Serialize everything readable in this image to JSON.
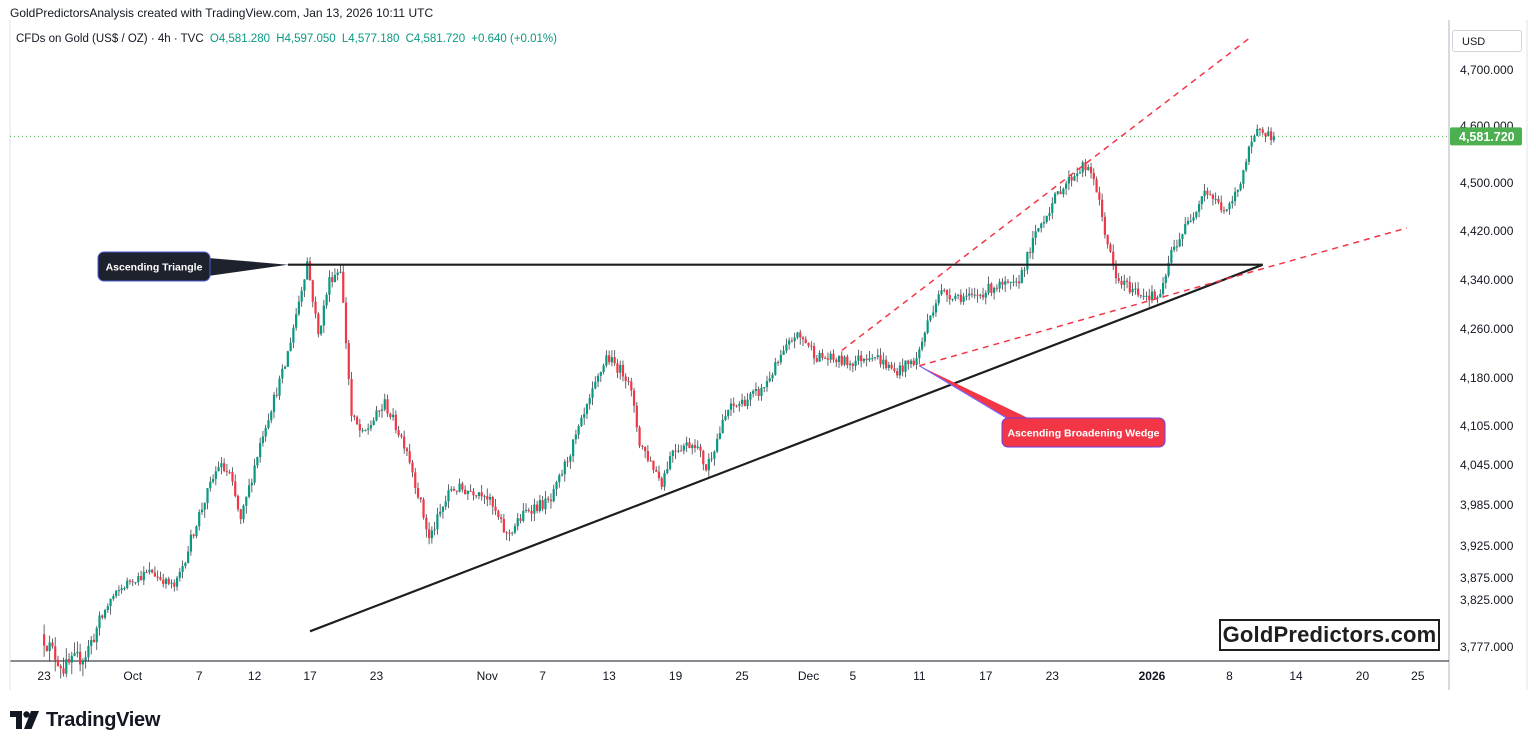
{
  "header": {
    "caption": "GoldPredictorsAnalysis created with TradingView.com, Jan 13, 2026 10:11 UTC",
    "symbol": "CFDs on Gold (US$ / OZ) · 4h · TVC",
    "open": "O4,581.280",
    "high": "H4,597.050",
    "low": "L4,577.180",
    "close": "C4,581.720",
    "change": "+0.640 (+0.01%)"
  },
  "currency": "USD",
  "brand": "GoldPredictors.com",
  "footer_logo": "TradingView",
  "colors": {
    "up": "#089981",
    "down": "#f23645",
    "pattern_line": "#1e1e1e",
    "wedge_line": "#f23645",
    "last_price": "#4caf50",
    "callout_dark": "#1e222d",
    "callout_red": "#f23645"
  },
  "annotations": {
    "triangle": "Ascending Triangle",
    "wedge": "Ascending Broadening Wedge"
  },
  "chart_data": {
    "type": "candlestick",
    "timeframe": "4h",
    "yaxis": {
      "ticks": [
        3777,
        3825,
        3875,
        3925,
        3985,
        4045,
        4105,
        4180,
        4260,
        4340,
        4420,
        4500,
        4600,
        4700
      ],
      "tick_labels": [
        "3,777.000",
        "3,825.000",
        "3,875.000",
        "3,925.000",
        "3,985.000",
        "4,045.000",
        "4,105.000",
        "4,180.000",
        "4,260.000",
        "4,340.000",
        "4,420.000",
        "4,500.000",
        "4,600.000",
        "4,700.000"
      ]
    },
    "xaxis": {
      "ticks": [
        {
          "label": "23",
          "date": "2025-09-23",
          "bold": false
        },
        {
          "label": "Oct",
          "date": "2025-10-01",
          "bold": false
        },
        {
          "label": "7",
          "date": "2025-10-07",
          "bold": false
        },
        {
          "label": "12",
          "date": "2025-10-12",
          "bold": false
        },
        {
          "label": "17",
          "date": "2025-10-17",
          "bold": false
        },
        {
          "label": "23",
          "date": "2025-10-23",
          "bold": false
        },
        {
          "label": "Nov",
          "date": "2025-11-02",
          "bold": false
        },
        {
          "label": "7",
          "date": "2025-11-07",
          "bold": false
        },
        {
          "label": "13",
          "date": "2025-11-13",
          "bold": false
        },
        {
          "label": "19",
          "date": "2025-11-19",
          "bold": false
        },
        {
          "label": "25",
          "date": "2025-11-25",
          "bold": false
        },
        {
          "label": "Dec",
          "date": "2025-12-01",
          "bold": false
        },
        {
          "label": "5",
          "date": "2025-12-05",
          "bold": false
        },
        {
          "label": "11",
          "date": "2025-12-11",
          "bold": false
        },
        {
          "label": "17",
          "date": "2025-12-17",
          "bold": false
        },
        {
          "label": "23",
          "date": "2025-12-23",
          "bold": false
        },
        {
          "label": "2026",
          "date": "2026-01-01",
          "bold": true
        },
        {
          "label": "8",
          "date": "2026-01-08",
          "bold": false
        },
        {
          "label": "14",
          "date": "2026-01-14",
          "bold": false
        },
        {
          "label": "20",
          "date": "2026-01-20",
          "bold": false
        },
        {
          "label": "25",
          "date": "2026-01-25",
          "bold": false
        }
      ]
    },
    "last_price": 4581.72,
    "last_price_label": "4,581.720",
    "price_path": [
      [
        "2025-09-23",
        3790
      ],
      [
        "2025-09-25",
        3755
      ],
      [
        "2025-09-27",
        3770
      ],
      [
        "2025-10-01",
        3870
      ],
      [
        "2025-10-03",
        3885
      ],
      [
        "2025-10-05",
        3855
      ],
      [
        "2025-10-07",
        3960
      ],
      [
        "2025-10-09",
        4045
      ],
      [
        "2025-10-10",
        4030
      ],
      [
        "2025-10-11",
        3960
      ],
      [
        "2025-10-13",
        4095
      ],
      [
        "2025-10-15",
        4200
      ],
      [
        "2025-10-17",
        4370
      ],
      [
        "2025-10-18",
        4250
      ],
      [
        "2025-10-19",
        4340
      ],
      [
        "2025-10-20",
        4360
      ],
      [
        "2025-10-21",
        4120
      ],
      [
        "2025-10-22",
        4090
      ],
      [
        "2025-10-24",
        4140
      ],
      [
        "2025-10-26",
        4070
      ],
      [
        "2025-10-28",
        3935
      ],
      [
        "2025-10-30",
        4010
      ],
      [
        "2025-11-02",
        4005
      ],
      [
        "2025-11-04",
        3940
      ],
      [
        "2025-11-06",
        3980
      ],
      [
        "2025-11-08",
        3990
      ],
      [
        "2025-11-11",
        4120
      ],
      [
        "2025-11-13",
        4215
      ],
      [
        "2025-11-15",
        4180
      ],
      [
        "2025-11-16",
        4080
      ],
      [
        "2025-11-18",
        4020
      ],
      [
        "2025-11-19",
        4070
      ],
      [
        "2025-11-21",
        4080
      ],
      [
        "2025-11-22",
        4040
      ],
      [
        "2025-11-24",
        4130
      ],
      [
        "2025-11-27",
        4160
      ],
      [
        "2025-11-30",
        4250
      ],
      [
        "2025-12-01",
        4240
      ],
      [
        "2025-12-02",
        4215
      ],
      [
        "2025-12-05",
        4205
      ],
      [
        "2025-12-07",
        4220
      ],
      [
        "2025-12-09",
        4190
      ],
      [
        "2025-12-11",
        4210
      ],
      [
        "2025-12-12",
        4270
      ],
      [
        "2025-12-13",
        4320
      ],
      [
        "2025-12-16",
        4310
      ],
      [
        "2025-12-18",
        4330
      ],
      [
        "2025-12-20",
        4330
      ],
      [
        "2025-12-22",
        4425
      ],
      [
        "2025-12-24",
        4490
      ],
      [
        "2025-12-26",
        4530
      ],
      [
        "2025-12-27",
        4510
      ],
      [
        "2025-12-28",
        4420
      ],
      [
        "2025-12-29",
        4340
      ],
      [
        "2025-12-31",
        4320
      ],
      [
        "2026-01-02",
        4310
      ],
      [
        "2026-01-03",
        4385
      ],
      [
        "2026-01-05",
        4450
      ],
      [
        "2026-01-06",
        4490
      ],
      [
        "2026-01-08",
        4450
      ],
      [
        "2026-01-09",
        4490
      ],
      [
        "2026-01-10",
        4555
      ],
      [
        "2026-01-11",
        4600
      ],
      [
        "2026-01-12",
        4582
      ]
    ],
    "lines": [
      {
        "name": "Ascending Triangle",
        "style": "solid",
        "from": [
          "2025-10-15",
          4365
        ],
        "to": [
          "2026-01-11",
          4365
        ]
      },
      {
        "style": "solid",
        "from": [
          "2025-10-17",
          3793
        ],
        "to": [
          "2026-01-11",
          4365
        ]
      },
      {
        "name": "Ascending Broadening Wedge",
        "style": "dashed",
        "from": [
          "2025-12-04",
          4225
        ],
        "to": [
          "2026-01-10",
          4760
        ]
      },
      {
        "style": "dashed",
        "from": [
          "2025-12-11",
          4200
        ],
        "to": [
          "2026-01-24",
          4425
        ]
      }
    ]
  }
}
